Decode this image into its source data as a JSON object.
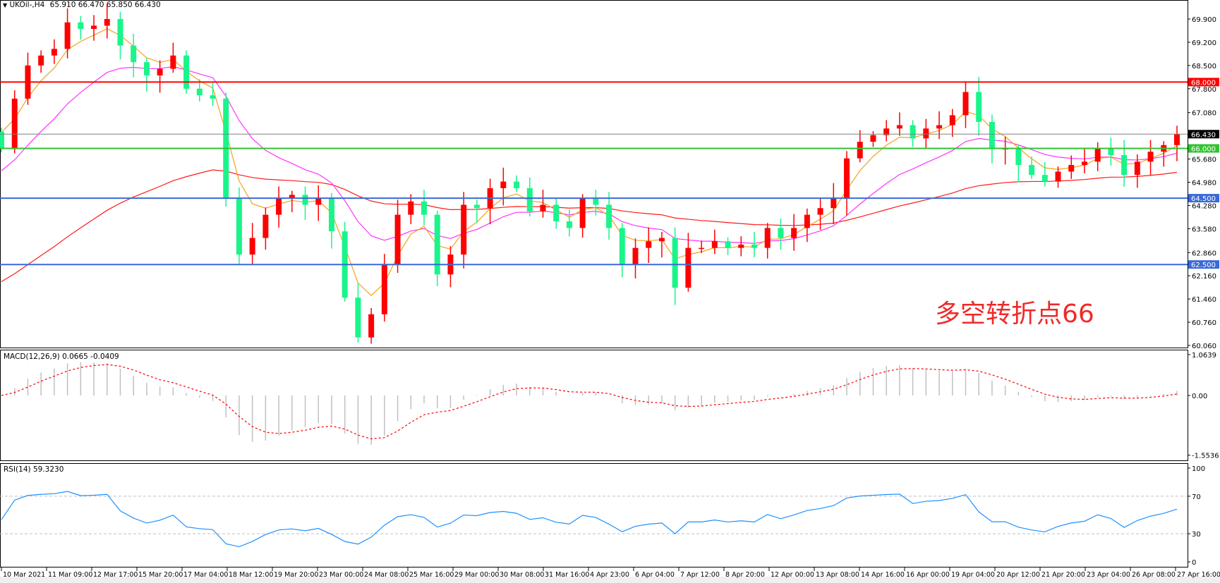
{
  "header": {
    "symbol_label": "UKOil-,H4",
    "ohlc": "65.910 66.470 65.850 66.430"
  },
  "annotation": "多空转折点66",
  "colors": {
    "up_candle": "#ff0000",
    "down_candle": "#19f58a",
    "ma_fast": "#f5a31a",
    "ma_mid": "#ff33ff",
    "ma_slow": "#ff1a1a",
    "level_red": "#ff0000",
    "level_green": "#33c233",
    "level_blue": "#3a6ad8",
    "current_price": "#808080",
    "macd_hist": "#c0c0c0",
    "macd_signal": "#ff0000",
    "rsi_line": "#1e90ff"
  },
  "chart_data": [
    {
      "type": "candlestick",
      "panel": "main",
      "ylim": [
        60.06,
        69.9
      ],
      "y_ticks": [
        "69.900",
        "69.200",
        "68.500",
        "67.800",
        "67.080",
        "65.680",
        "64.980",
        "64.280",
        "63.580",
        "62.860",
        "62.160",
        "61.460",
        "60.760",
        "60.060"
      ],
      "x_ticks": [
        "10 Mar 2021",
        "11 Mar 09:00",
        "12 Mar 17:00",
        "15 Mar 20:00",
        "17 Mar 04:00",
        "18 Mar 12:00",
        "19 Mar 20:00",
        "23 Mar 00:00",
        "24 Mar 08:00",
        "25 Mar 16:00",
        "29 Mar 00:00",
        "30 Mar 08:00",
        "31 Mar 16:00",
        "4 Apr 23:00",
        "6 Apr 04:00",
        "7 Apr 12:00",
        "8 Apr 20:00",
        "12 Apr 00:00",
        "13 Apr 08:00",
        "14 Apr 16:00",
        "16 Apr 00:00",
        "19 Apr 04:00",
        "20 Apr 12:00",
        "21 Apr 20:00",
        "23 Apr 04:00",
        "26 Apr 08:00",
        "27 Apr 16:00"
      ],
      "closes": [
        66.0,
        67.5,
        68.5,
        68.8,
        69.0,
        69.8,
        69.6,
        69.7,
        69.9,
        69.1,
        68.6,
        68.2,
        68.4,
        68.8,
        67.8,
        67.6,
        67.5,
        64.5,
        62.8,
        63.3,
        64.0,
        64.5,
        64.6,
        64.3,
        64.5,
        63.5,
        61.5,
        60.3,
        61.0,
        62.5,
        64.0,
        64.4,
        64.0,
        62.2,
        62.8,
        64.3,
        64.2,
        64.8,
        65.0,
        64.8,
        64.1,
        64.3,
        63.8,
        63.6,
        64.5,
        64.3,
        63.6,
        62.5,
        63.0,
        63.2,
        63.3,
        61.8,
        63.0,
        63.0,
        63.2,
        63.0,
        63.1,
        63.0,
        63.6,
        63.3,
        63.6,
        64.0,
        64.2,
        64.5,
        65.7,
        66.2,
        66.4,
        66.6,
        66.7,
        66.3,
        66.6,
        66.7,
        67.0,
        67.7,
        66.8,
        66.0,
        66.0,
        65.5,
        65.2,
        65.0,
        65.3,
        65.5,
        65.6,
        66.0,
        65.8,
        65.2,
        65.6,
        65.9,
        66.1,
        66.43
      ],
      "levels": [
        {
          "value": 68.0,
          "label": "68.000",
          "color": "#ff0000"
        },
        {
          "value": 66.43,
          "label": "66.430",
          "color": "#000000"
        },
        {
          "value": 66.0,
          "label": "66.000",
          "color": "#33c233"
        },
        {
          "value": 64.5,
          "label": "64.500",
          "color": "#3a6ad8"
        },
        {
          "value": 62.5,
          "label": "62.500",
          "color": "#3a6ad8"
        }
      ]
    },
    {
      "type": "bar",
      "panel": "macd",
      "title": "MACD(12,26,9) 0.0665 -0.0409",
      "ylim": [
        -1.5536,
        1.0639
      ],
      "y_ticks": [
        "1.0639",
        "0.00",
        "-1.5536"
      ]
    },
    {
      "type": "line",
      "panel": "rsi",
      "title": "RSI(14) 59.3230",
      "ylim": [
        0,
        100
      ],
      "y_ticks": [
        "100",
        "70",
        "30",
        "0"
      ],
      "levels": [
        70,
        30
      ]
    }
  ]
}
